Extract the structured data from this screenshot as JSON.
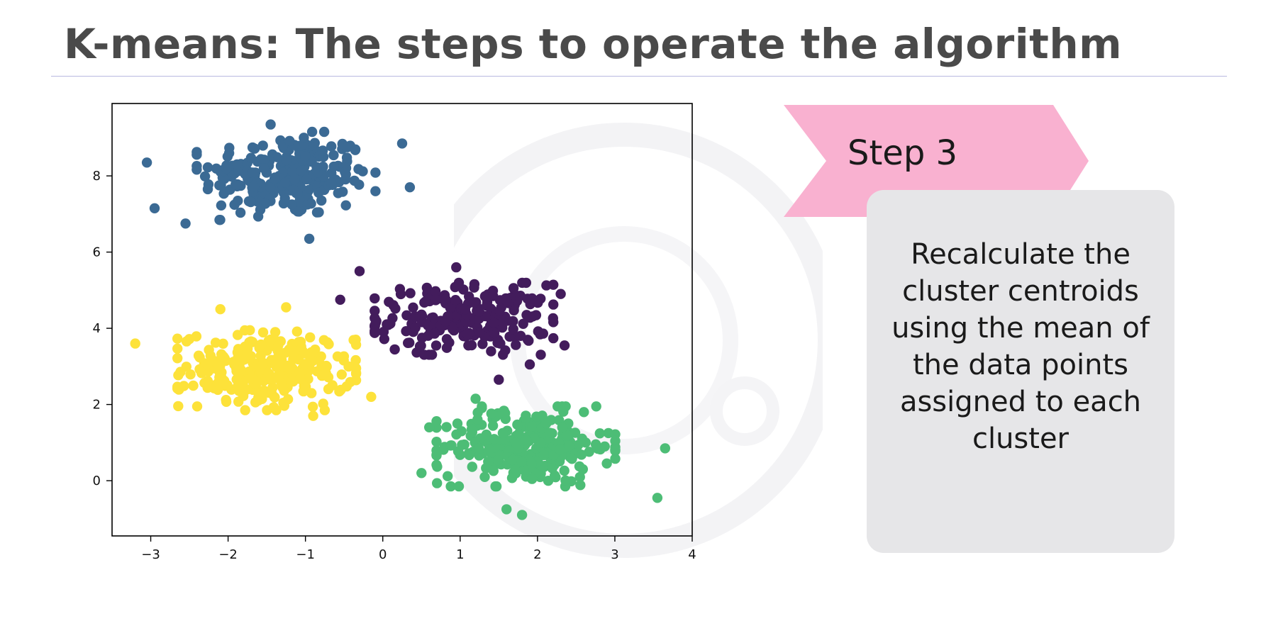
{
  "slide": {
    "title": "K-means: The steps to operate the algorithm"
  },
  "step": {
    "label": "Step 3",
    "banner_color": "#f9b1d0",
    "description": "Recalculate the cluster centroids using the mean of the data points assigned to each cluster",
    "box_color": "#e6e6e8"
  },
  "chart_data": {
    "type": "scatter",
    "title": "",
    "xlabel": "",
    "ylabel": "",
    "xlim": [
      -3.5,
      4.0
    ],
    "ylim": [
      -1.45,
      9.9
    ],
    "xticks": [
      -3,
      -2,
      -1,
      0,
      1,
      2,
      3,
      4
    ],
    "xtick_labels": [
      "−3",
      "−2",
      "−1",
      "0",
      "1",
      "2",
      "3",
      "4"
    ],
    "yticks": [
      0,
      2,
      4,
      6,
      8
    ],
    "ytick_labels": [
      "0",
      "2",
      "4",
      "6",
      "8"
    ],
    "grid": false,
    "legend": "none",
    "clusters": [
      {
        "color": "#3b6a94",
        "center": [
          -1.25,
          8.0
        ],
        "spread": [
          0.55,
          0.55
        ],
        "count": 240,
        "extreme_points": [
          [
            -3.05,
            8.35
          ],
          [
            -2.95,
            7.15
          ],
          [
            -2.55,
            6.75
          ],
          [
            -1.45,
            9.35
          ],
          [
            -0.95,
            6.35
          ],
          [
            0.25,
            8.85
          ],
          [
            0.35,
            7.7
          ]
        ]
      },
      {
        "color": "#431c5c",
        "center": [
          1.05,
          4.25
        ],
        "spread": [
          0.55,
          0.45
        ],
        "count": 220,
        "extreme_points": [
          [
            -0.3,
            5.5
          ],
          [
            -0.55,
            4.75
          ],
          [
            0.95,
            5.6
          ],
          [
            2.3,
            4.9
          ],
          [
            2.35,
            3.55
          ],
          [
            1.5,
            2.65
          ],
          [
            1.9,
            3.05
          ]
        ]
      },
      {
        "color": "#fde23a",
        "center": [
          -1.5,
          2.9
        ],
        "spread": [
          0.55,
          0.5
        ],
        "count": 260,
        "extreme_points": [
          [
            -3.2,
            3.6
          ],
          [
            -2.1,
            4.5
          ],
          [
            -1.25,
            4.55
          ],
          [
            -0.35,
            3.7
          ],
          [
            -0.15,
            2.2
          ],
          [
            -0.9,
            1.7
          ],
          [
            -2.4,
            1.95
          ]
        ]
      },
      {
        "color": "#4dbd76",
        "center": [
          1.85,
          0.9
        ],
        "spread": [
          0.55,
          0.5
        ],
        "count": 260,
        "extreme_points": [
          [
            0.5,
            0.2
          ],
          [
            0.6,
            1.4
          ],
          [
            1.2,
            2.15
          ],
          [
            2.6,
            1.8
          ],
          [
            3.65,
            0.85
          ],
          [
            3.55,
            -0.45
          ],
          [
            1.8,
            -0.9
          ],
          [
            1.6,
            -0.75
          ]
        ]
      }
    ]
  }
}
